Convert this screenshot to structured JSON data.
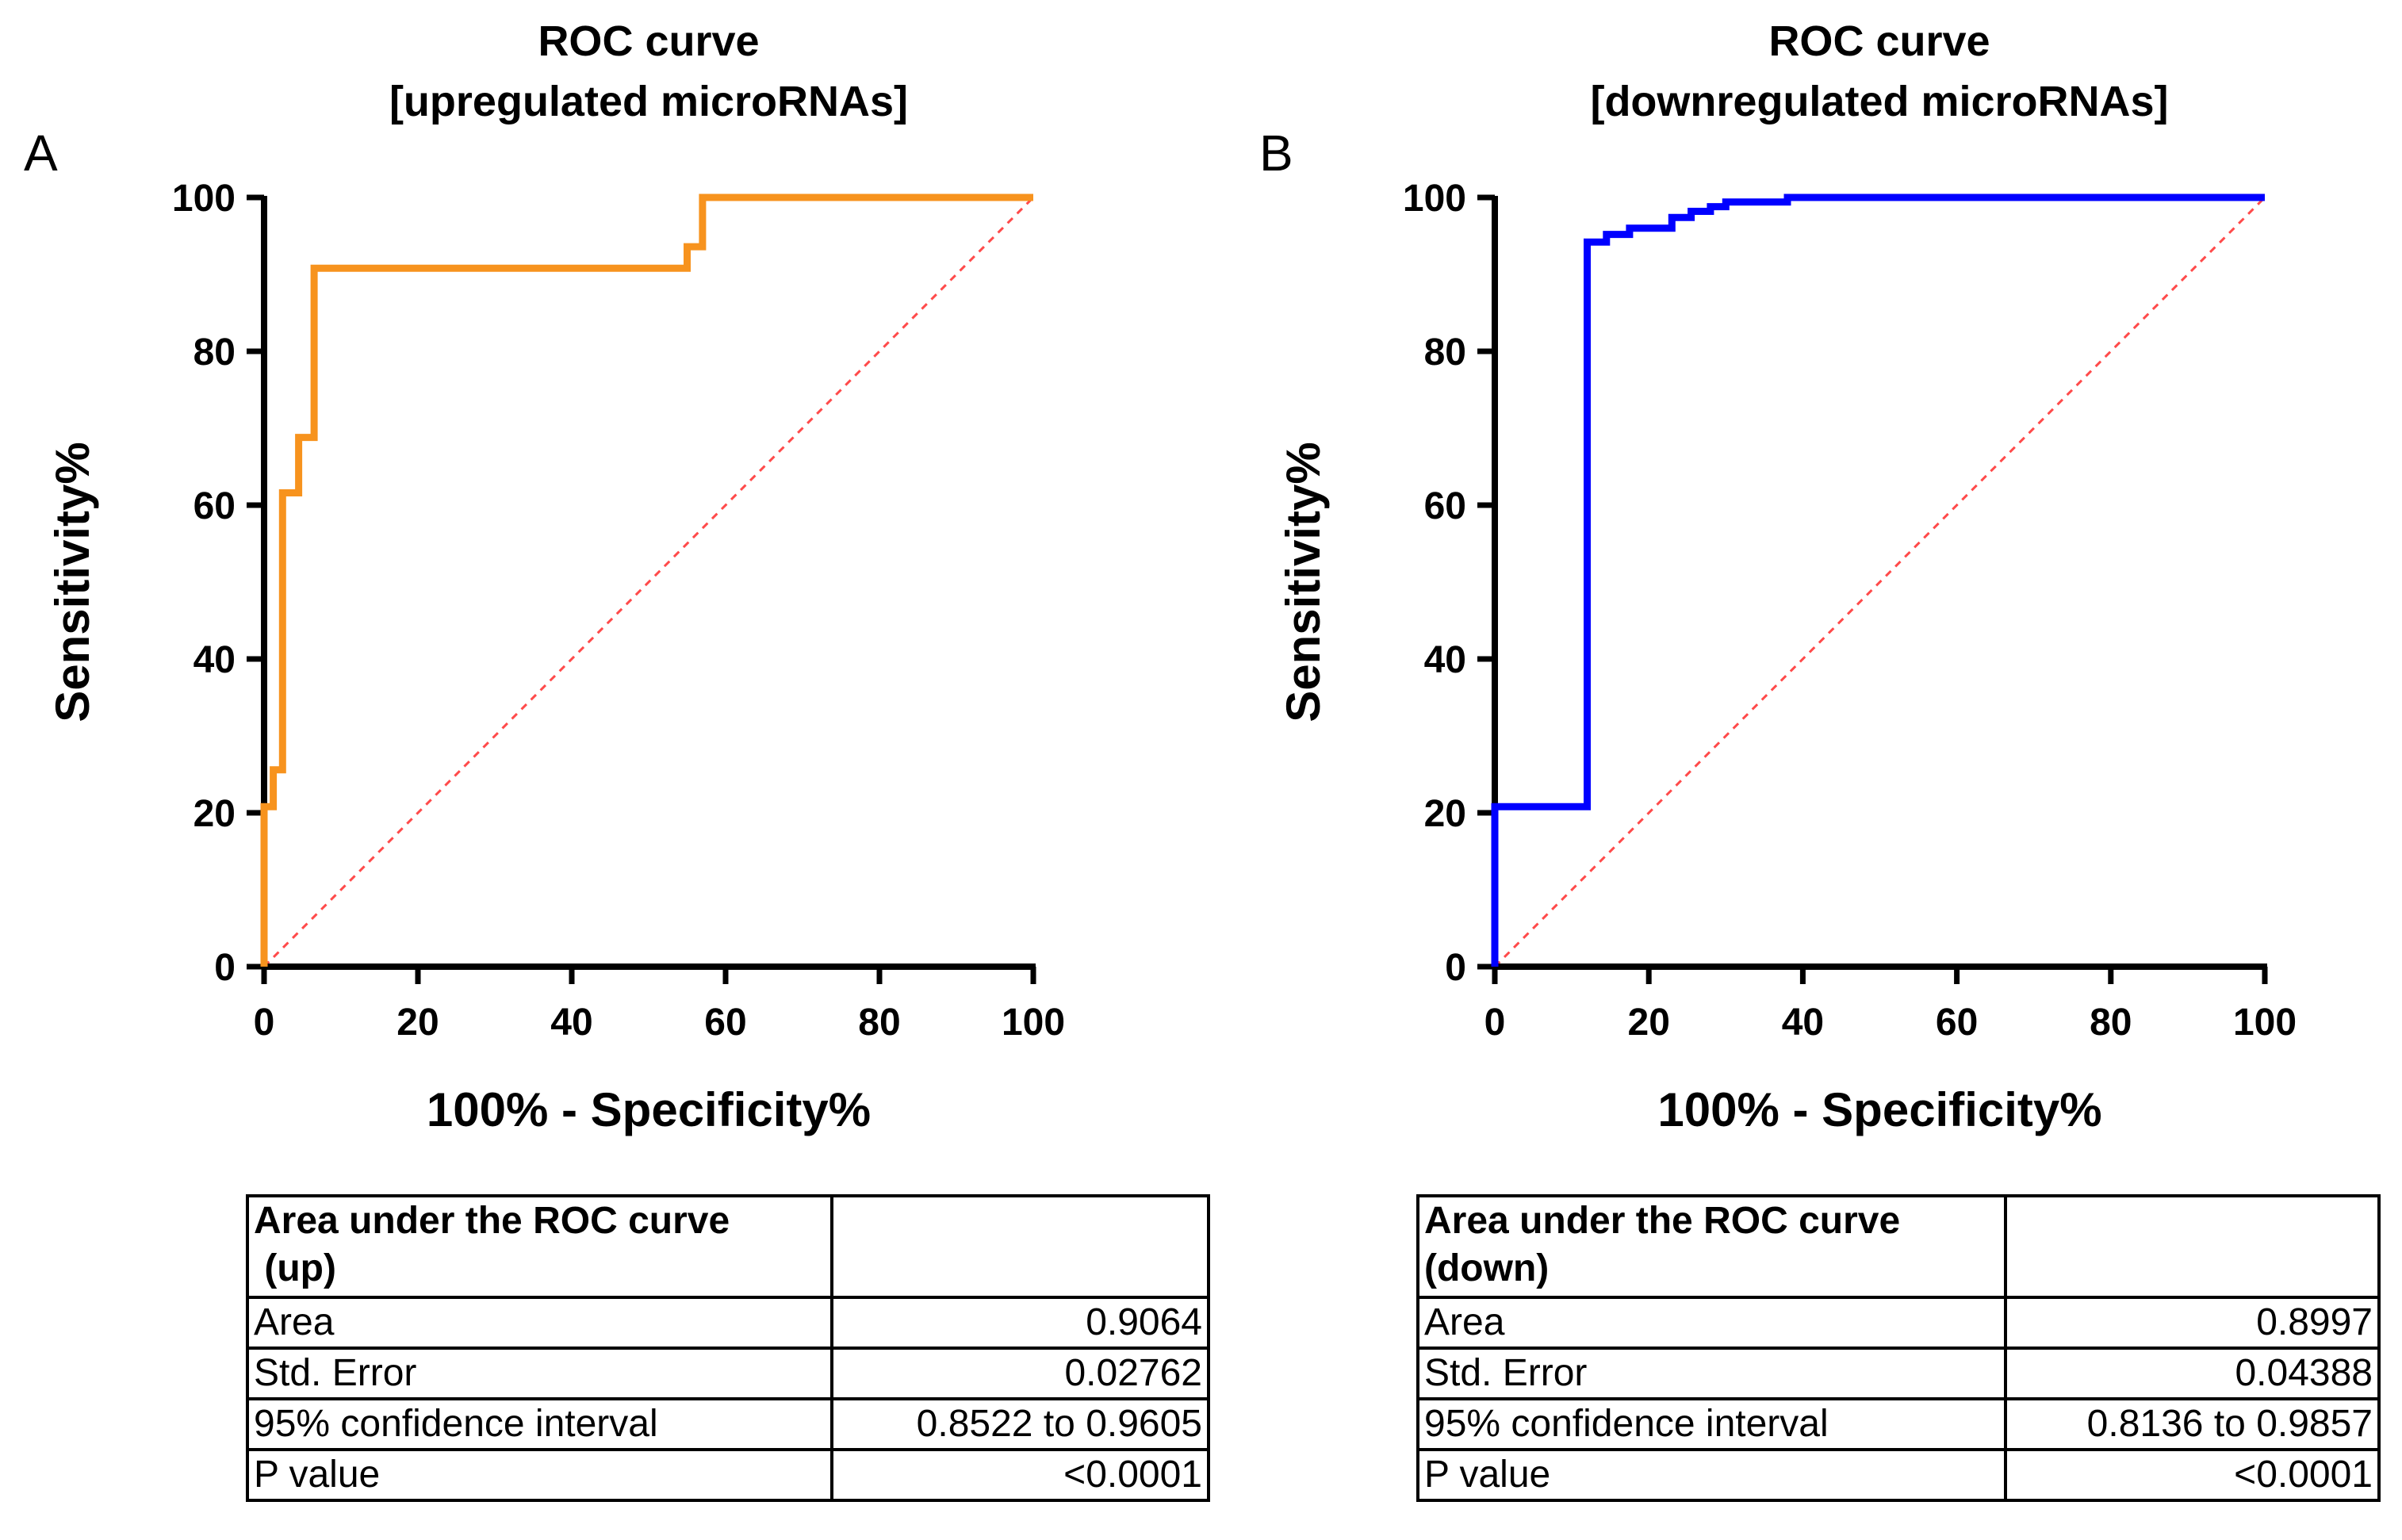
{
  "chart_data": [
    {
      "panel": "A",
      "type": "line",
      "title": [
        "ROC curve",
        "[upregulated microRNAs]"
      ],
      "xlabel": "100% - Specificity%",
      "ylabel": "Sensitivity%",
      "xlim": [
        0,
        100
      ],
      "ylim": [
        0,
        100
      ],
      "xticks": [
        "0",
        "20",
        "40",
        "60",
        "80",
        "100"
      ],
      "yticks": [
        "0",
        "20",
        "40",
        "60",
        "80",
        "100"
      ],
      "color": "#f7931e",
      "reference_color": "#ff4a4a",
      "series": [
        {
          "name": "up",
          "x": [
            0,
            0,
            1.2,
            1.2,
            2.4,
            2.4,
            4.5,
            4.5,
            6.5,
            6.5,
            9,
            9,
            55,
            55,
            57,
            57,
            100
          ],
          "y": [
            0,
            20.8,
            20.8,
            25.6,
            25.6,
            61.6,
            61.6,
            68.8,
            68.8,
            90.8,
            90.8,
            90.8,
            90.8,
            93.6,
            93.6,
            100,
            100
          ]
        }
      ],
      "table": {
        "header": "Area under the ROC curve (up)",
        "rows": [
          {
            "label": "Area",
            "value": "0.9064"
          },
          {
            "label": "Std. Error",
            "value": "0.02762"
          },
          {
            "label": "95% confidence interval",
            "value": "0.8522 to 0.9605"
          },
          {
            "label": "P value",
            "value": "<0.0001"
          }
        ]
      }
    },
    {
      "panel": "B",
      "type": "line",
      "title": [
        "ROC curve",
        "[downregulated microRNAs]"
      ],
      "xlabel": "100% - Specificity%",
      "ylabel": "Sensitivity%",
      "xlim": [
        0,
        100
      ],
      "ylim": [
        0,
        100
      ],
      "xticks": [
        "0",
        "20",
        "40",
        "60",
        "80",
        "100"
      ],
      "yticks": [
        "0",
        "20",
        "40",
        "60",
        "80",
        "100"
      ],
      "color": "#0000ff",
      "reference_color": "#ff4a4a",
      "series": [
        {
          "name": "down",
          "x": [
            0,
            0,
            12,
            12,
            14.5,
            14.5,
            17.5,
            17.5,
            23,
            23,
            25.5,
            25.5,
            28,
            28,
            30,
            30,
            38,
            38,
            100
          ],
          "y": [
            0,
            20.8,
            20.8,
            94.2,
            94.2,
            95.2,
            95.2,
            96,
            96,
            97.4,
            97.4,
            98.2,
            98.2,
            98.8,
            98.8,
            99.4,
            99.4,
            100,
            100
          ]
        }
      ],
      "table": {
        "header": "Area under the ROC curve (down)",
        "rows": [
          {
            "label": "Area",
            "value": "0.8997"
          },
          {
            "label": "Std. Error",
            "value": "0.04388"
          },
          {
            "label": "95% confidence interval",
            "value": "0.8136 to 0.9857"
          },
          {
            "label": "P value",
            "value": "<0.0001"
          }
        ]
      }
    }
  ],
  "tables": {
    "A": {
      "header_line1": "Area under the ROC curve",
      "header_line2": " (up)"
    },
    "B": {
      "header_line1": "Area under the ROC curve",
      "header_line2": "(down)"
    }
  }
}
